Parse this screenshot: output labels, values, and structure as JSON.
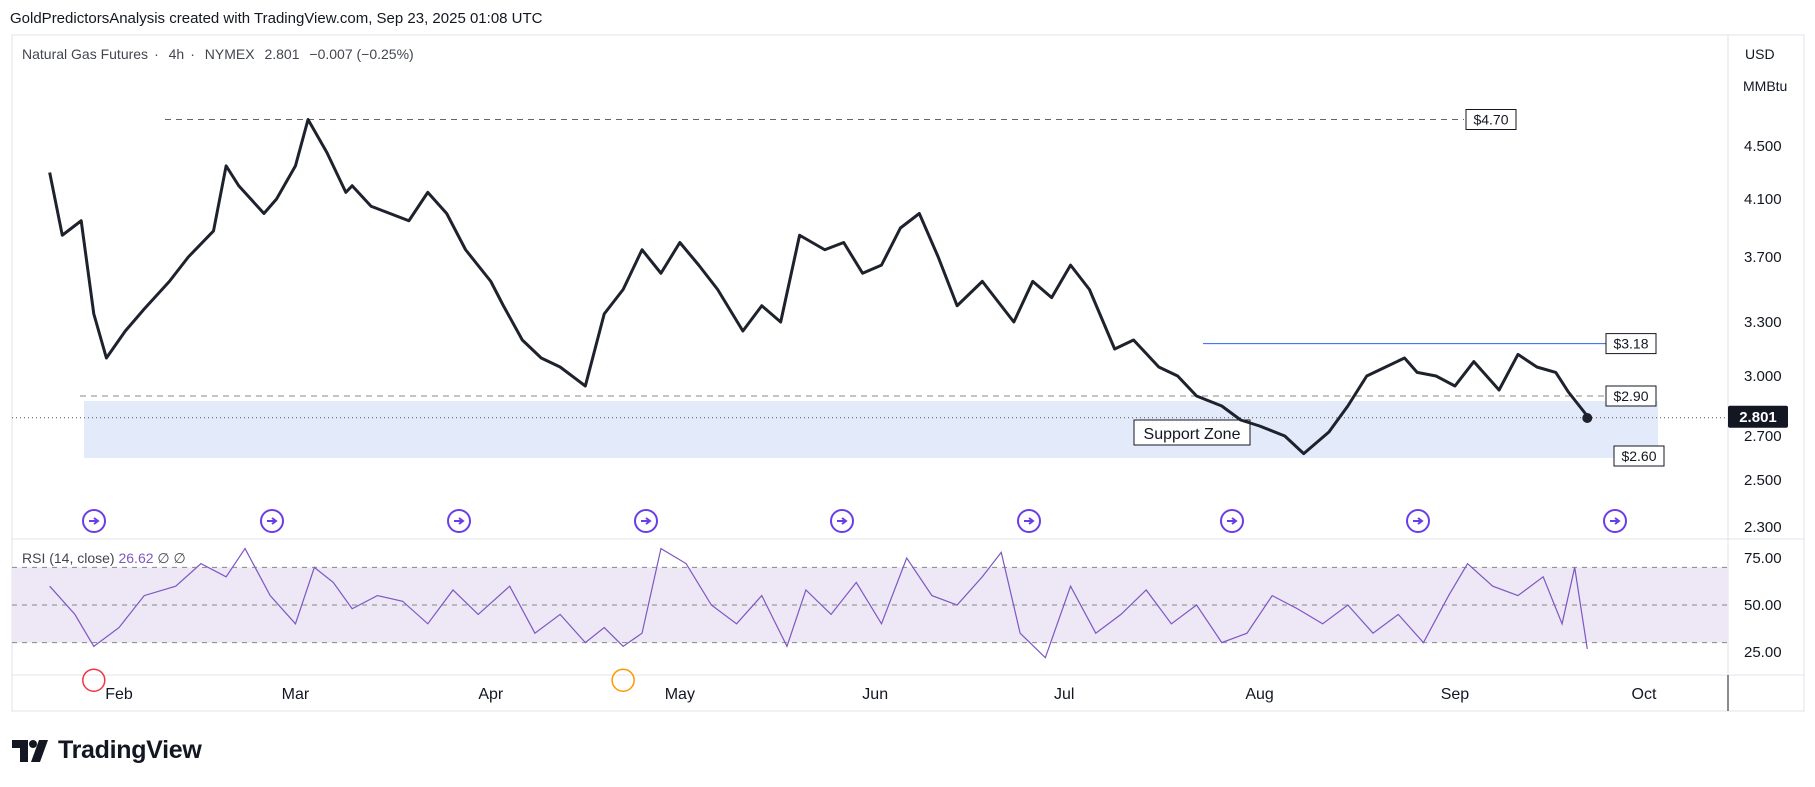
{
  "header": {
    "text": "GoldPredictorsAnalysis created with TradingView.com, Sep 23, 2025 01:08 UTC"
  },
  "legend": {
    "symbol": "Natural Gas Futures",
    "interval": "4h",
    "exchange": "NYMEX",
    "last": "2.801",
    "change": "−0.007 (−0.25%)"
  },
  "units": {
    "currency": "USD",
    "unit": "MMBtu"
  },
  "rsi_legend": {
    "label": "RSI (14, close)",
    "value": "26.62",
    "extra1": "∅",
    "extra2": "∅"
  },
  "footer": {
    "logo_text": "TradingView"
  },
  "colors": {
    "price_line": "#1e222d",
    "rsi_line": "#7e57c2",
    "rsi_band": "#ede7f6",
    "support_zone": "#e3ebfb",
    "resistance_line": "#2962ff",
    "event_marker": "#6a3de8"
  },
  "chart_data": [
    {
      "type": "line",
      "title": "Natural Gas Futures · 4h · NYMEX",
      "x_ticks": [
        "Feb",
        "Mar",
        "Apr",
        "May",
        "Jun",
        "Jul",
        "Aug",
        "Sep",
        "Oct"
      ],
      "y_ticks": [
        "4.500",
        "4.100",
        "3.700",
        "3.300",
        "3.000",
        "2.700",
        "2.500",
        "2.300"
      ],
      "last_price_label": "2.801",
      "series": [
        {
          "x": [
            "2025-01-21",
            "2025-01-23",
            "2025-01-26",
            "2025-01-28",
            "2025-01-30",
            "2025-02-02",
            "2025-02-05",
            "2025-02-09",
            "2025-02-12",
            "2025-02-16",
            "2025-02-18",
            "2025-02-20",
            "2025-02-24",
            "2025-02-26",
            "2025-03-01",
            "2025-03-03",
            "2025-03-06",
            "2025-03-09",
            "2025-03-10",
            "2025-03-13",
            "2025-03-16",
            "2025-03-19",
            "2025-03-22",
            "2025-03-25",
            "2025-03-28",
            "2025-04-01",
            "2025-04-03",
            "2025-04-06",
            "2025-04-09",
            "2025-04-12",
            "2025-04-16",
            "2025-04-19",
            "2025-04-22",
            "2025-04-25",
            "2025-04-28",
            "2025-05-01",
            "2025-05-04",
            "2025-05-07",
            "2025-05-11",
            "2025-05-14",
            "2025-05-17",
            "2025-05-20",
            "2025-05-24",
            "2025-05-27",
            "2025-05-30",
            "2025-06-02",
            "2025-06-05",
            "2025-06-08",
            "2025-06-11",
            "2025-06-14",
            "2025-06-18",
            "2025-06-21",
            "2025-06-23",
            "2025-06-26",
            "2025-06-29",
            "2025-07-02",
            "2025-07-05",
            "2025-07-09",
            "2025-07-12",
            "2025-07-16",
            "2025-07-19",
            "2025-07-22",
            "2025-07-26",
            "2025-07-29",
            "2025-08-01",
            "2025-08-05",
            "2025-08-08",
            "2025-08-12",
            "2025-08-15",
            "2025-08-18",
            "2025-08-21",
            "2025-08-24",
            "2025-08-26",
            "2025-08-29",
            "2025-09-01",
            "2025-09-04",
            "2025-09-08",
            "2025-09-11",
            "2025-09-14",
            "2025-09-17",
            "2025-09-19",
            "2025-09-22"
          ],
          "values": [
            4.3,
            3.85,
            3.95,
            3.35,
            3.1,
            3.25,
            3.38,
            3.55,
            3.7,
            3.88,
            4.35,
            4.2,
            4.0,
            4.1,
            4.35,
            4.7,
            4.45,
            4.15,
            4.2,
            4.05,
            4.0,
            3.95,
            4.15,
            4.0,
            3.75,
            3.55,
            3.4,
            3.2,
            3.1,
            3.05,
            2.95,
            3.35,
            3.5,
            3.75,
            3.6,
            3.8,
            3.65,
            3.5,
            3.25,
            3.4,
            3.3,
            3.85,
            3.75,
            3.8,
            3.6,
            3.65,
            3.9,
            4.0,
            3.7,
            3.4,
            3.55,
            3.4,
            3.3,
            3.55,
            3.45,
            3.65,
            3.5,
            3.15,
            3.2,
            3.05,
            3.0,
            2.9,
            2.85,
            2.78,
            2.75,
            2.7,
            2.62,
            2.72,
            2.85,
            3.0,
            3.05,
            3.1,
            3.02,
            3.0,
            2.95,
            3.08,
            2.93,
            3.12,
            3.05,
            3.02,
            2.92,
            2.8
          ]
        }
      ],
      "levels": [
        {
          "label": "$4.70",
          "value": 4.7,
          "style": "dashed"
        },
        {
          "label": "$3.18",
          "value": 3.18,
          "style": "solid"
        },
        {
          "label": "$2.90",
          "value": 2.9,
          "style": "dashed"
        },
        {
          "label": "$2.60",
          "value": 2.6,
          "style": "zone-bottom"
        }
      ],
      "zone": {
        "label": "Support Zone",
        "top": 2.9,
        "bottom": 2.6
      }
    },
    {
      "type": "line",
      "title": "RSI (14, close)",
      "y_ticks": [
        "75.00",
        "50.00",
        "25.00"
      ],
      "band": [
        30,
        70
      ],
      "midline": 50,
      "series": [
        {
          "name": "RSI",
          "x": [
            "2025-01-21",
            "2025-01-25",
            "2025-01-28",
            "2025-02-01",
            "2025-02-05",
            "2025-02-10",
            "2025-02-14",
            "2025-02-18",
            "2025-02-21",
            "2025-02-25",
            "2025-03-01",
            "2025-03-04",
            "2025-03-07",
            "2025-03-10",
            "2025-03-14",
            "2025-03-18",
            "2025-03-22",
            "2025-03-26",
            "2025-03-30",
            "2025-04-04",
            "2025-04-08",
            "2025-04-12",
            "2025-04-16",
            "2025-04-19",
            "2025-04-22",
            "2025-04-25",
            "2025-04-28",
            "2025-05-02",
            "2025-05-06",
            "2025-05-10",
            "2025-05-14",
            "2025-05-18",
            "2025-05-21",
            "2025-05-25",
            "2025-05-29",
            "2025-06-02",
            "2025-06-06",
            "2025-06-10",
            "2025-06-14",
            "2025-06-18",
            "2025-06-21",
            "2025-06-24",
            "2025-06-28",
            "2025-07-02",
            "2025-07-06",
            "2025-07-10",
            "2025-07-14",
            "2025-07-18",
            "2025-07-22",
            "2025-07-26",
            "2025-07-30",
            "2025-08-03",
            "2025-08-07",
            "2025-08-11",
            "2025-08-15",
            "2025-08-19",
            "2025-08-23",
            "2025-08-27",
            "2025-08-31",
            "2025-09-03",
            "2025-09-07",
            "2025-09-11",
            "2025-09-15",
            "2025-09-18",
            "2025-09-20",
            "2025-09-22"
          ],
          "values": [
            60,
            45,
            28,
            38,
            55,
            60,
            72,
            65,
            80,
            55,
            40,
            70,
            62,
            48,
            55,
            52,
            40,
            58,
            45,
            60,
            35,
            45,
            30,
            38,
            28,
            35,
            80,
            72,
            50,
            40,
            55,
            28,
            58,
            45,
            62,
            40,
            75,
            55,
            50,
            65,
            78,
            35,
            22,
            60,
            35,
            45,
            58,
            40,
            50,
            30,
            35,
            55,
            48,
            40,
            50,
            35,
            45,
            30,
            55,
            72,
            60,
            55,
            65,
            40,
            70,
            26.62
          ]
        }
      ],
      "markers": [
        {
          "date": "2025-01-28",
          "kind": "oversold",
          "color": "#f23645"
        },
        {
          "date": "2025-04-22",
          "kind": "oversold",
          "color": "#ff9800"
        }
      ]
    }
  ]
}
